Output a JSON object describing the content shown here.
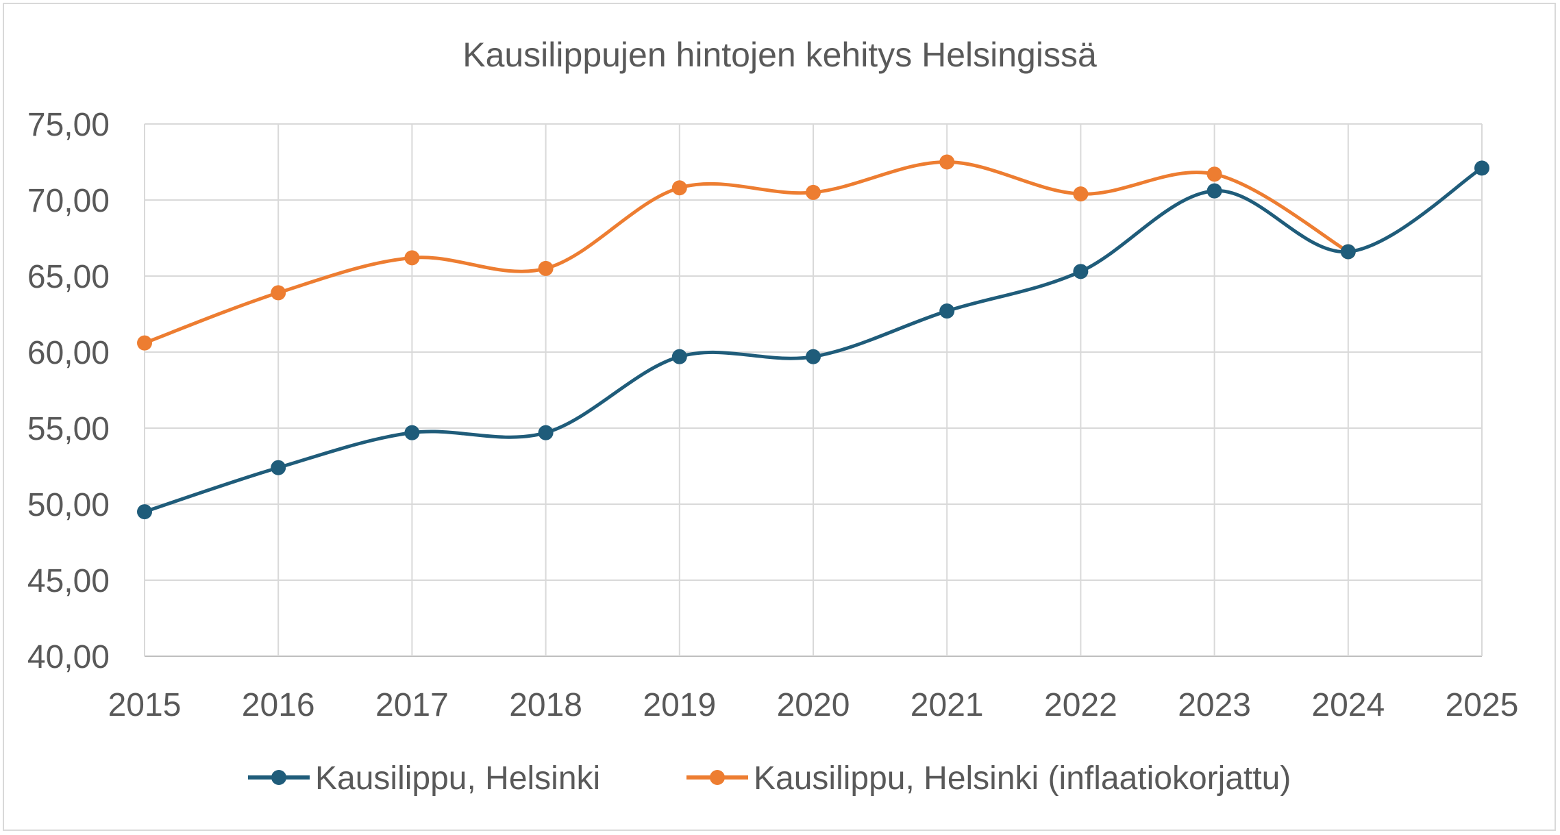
{
  "chart_data": {
    "type": "line",
    "title": "Kausilippujen hintojen kehitys Helsingissä",
    "xlabel": "",
    "ylabel": "",
    "categories": [
      "2015",
      "2016",
      "2017",
      "2018",
      "2019",
      "2020",
      "2021",
      "2022",
      "2023",
      "2024",
      "2025"
    ],
    "ylim": [
      40,
      75
    ],
    "ytick_labels": [
      "40,00",
      "45,00",
      "50,00",
      "55,00",
      "60,00",
      "65,00",
      "70,00",
      "75,00"
    ],
    "ytick_values": [
      40,
      45,
      50,
      55,
      60,
      65,
      70,
      75
    ],
    "grid": true,
    "smooth": true,
    "legend_position": "bottom",
    "series": [
      {
        "name": "Kausilippu, Helsinki",
        "color": "#1f5c7a",
        "values": [
          49.5,
          52.4,
          54.7,
          54.7,
          59.7,
          59.7,
          62.7,
          65.3,
          70.6,
          66.6,
          72.1
        ]
      },
      {
        "name": "Kausilippu, Helsinki (inflaatiokorjattu)",
        "color": "#ed7d31",
        "values": [
          60.6,
          63.9,
          66.2,
          65.5,
          70.8,
          70.5,
          72.5,
          70.4,
          71.7,
          66.6,
          null
        ]
      }
    ]
  }
}
